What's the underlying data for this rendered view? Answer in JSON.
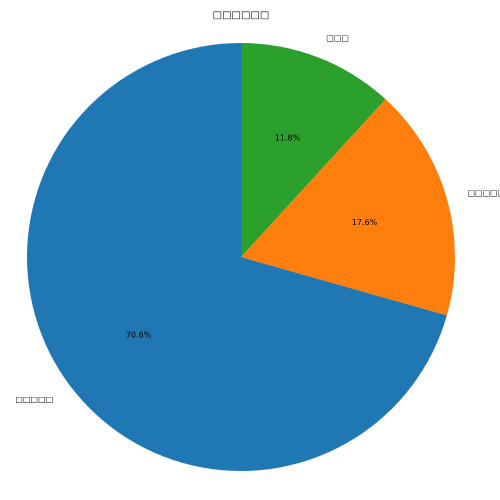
{
  "chart_data": {
    "type": "pie",
    "title": "□□□□□□",
    "categories": [
      "□□□□□",
      "□□□□□",
      "□□□"
    ],
    "values": [
      70.6,
      17.6,
      11.8
    ],
    "percent_labels": [
      "70.6%",
      "17.6%",
      "11.8%"
    ],
    "colors": [
      "#1f77b4",
      "#ff7f0e",
      "#2ca02c"
    ],
    "start_angle_deg": 90,
    "direction": "counterclockwise",
    "legend": "none"
  }
}
